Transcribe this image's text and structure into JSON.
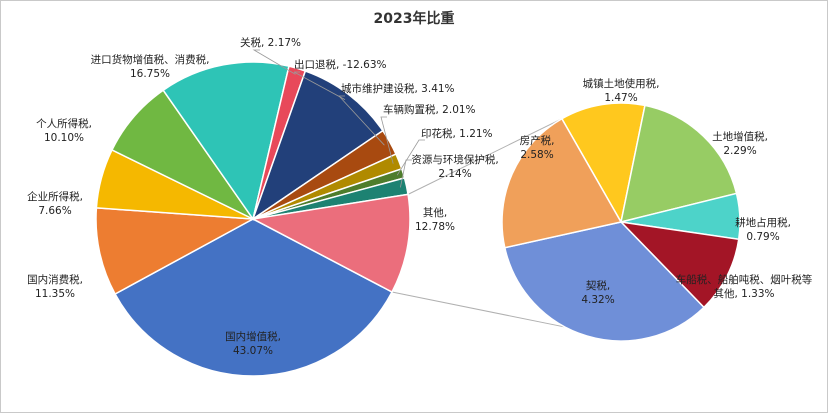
{
  "chart_data": {
    "type": "pie",
    "title": "2023年比重",
    "main_pie": {
      "slices": [
        {
          "key": "guannei_zengzhishui",
          "label": "国内增值税,",
          "value_text": "43.07%",
          "value": 43.07,
          "color": "#4472c4"
        },
        {
          "key": "guonei_xiaofeishui",
          "label": "国内消费税,",
          "value_text": "11.35%",
          "value": 11.35,
          "color": "#ed7d31"
        },
        {
          "key": "qiye_suodeshui",
          "label": "企业所得税,",
          "value_text": "7.66%",
          "value": 7.66,
          "color": "#f5b800"
        },
        {
          "key": "geren_suodeshui",
          "label": "个人所得税,",
          "value_text": "10.10%",
          "value": 10.1,
          "color": "#70b842"
        },
        {
          "key": "jinkou_huowu",
          "label": "进口货物增值税、消费税,",
          "value_text": "16.75%",
          "value": 16.75,
          "color": "#2ec4b6"
        },
        {
          "key": "guanshui",
          "label": "关税,",
          "value_text": "2.17%",
          "value": 2.17,
          "color": "#e8495a"
        },
        {
          "key": "chukou_tuishui",
          "label": "出口退税,",
          "value_text": "-12.63%",
          "value": -12.63,
          "color": "#22407a"
        },
        {
          "key": "chengshi_weihu",
          "label": "城市维护建设税,",
          "value_text": "3.41%",
          "value": 3.41,
          "color": "#a84a10"
        },
        {
          "key": "cheliang_gouzhi",
          "label": "车辆购置税,",
          "value_text": "2.01%",
          "value": 2.01,
          "color": "#b08a00"
        },
        {
          "key": "yinhuashui",
          "label": "印花税,",
          "value_text": "1.21%",
          "value": 1.21,
          "color": "#4e7d2c"
        },
        {
          "key": "ziyuan_huanbao",
          "label": "资源与环境保护税,",
          "value_text": "2.14%",
          "value": 2.14,
          "color": "#1d8272"
        },
        {
          "key": "qita",
          "label": "其他,",
          "value_text": "12.78%",
          "value": 12.78,
          "color": "#eb6e7c"
        }
      ]
    },
    "breakdown_pie": {
      "of": "其他",
      "slices": [
        {
          "key": "chengzhen_tudi",
          "label": "城镇土地使用税,",
          "value_text": "1.47%",
          "value": 1.47,
          "color": "#ffc81e"
        },
        {
          "key": "tudi_zengzhi",
          "label": "土地增值税,",
          "value_text": "2.29%",
          "value": 2.29,
          "color": "#97cc64"
        },
        {
          "key": "gengdi_zhanyong",
          "label": "耕地占用税,",
          "value_text": "0.79%",
          "value": 0.79,
          "color": "#4dd3c9"
        },
        {
          "key": "chechuan",
          "label": "车船税、船舶吨税、烟叶税等",
          "label2": "其他,",
          "value_text": "1.33%",
          "value": 1.33,
          "color": "#a31526"
        },
        {
          "key": "qishui",
          "label": "契税,",
          "value_text": "4.32%",
          "value": 4.32,
          "color": "#6f8fd8"
        },
        {
          "key": "fangchanshui",
          "label": "房产税,",
          "value_text": "2.58%",
          "value": 2.58,
          "color": "#f0a05a"
        }
      ]
    },
    "legend": "none"
  }
}
